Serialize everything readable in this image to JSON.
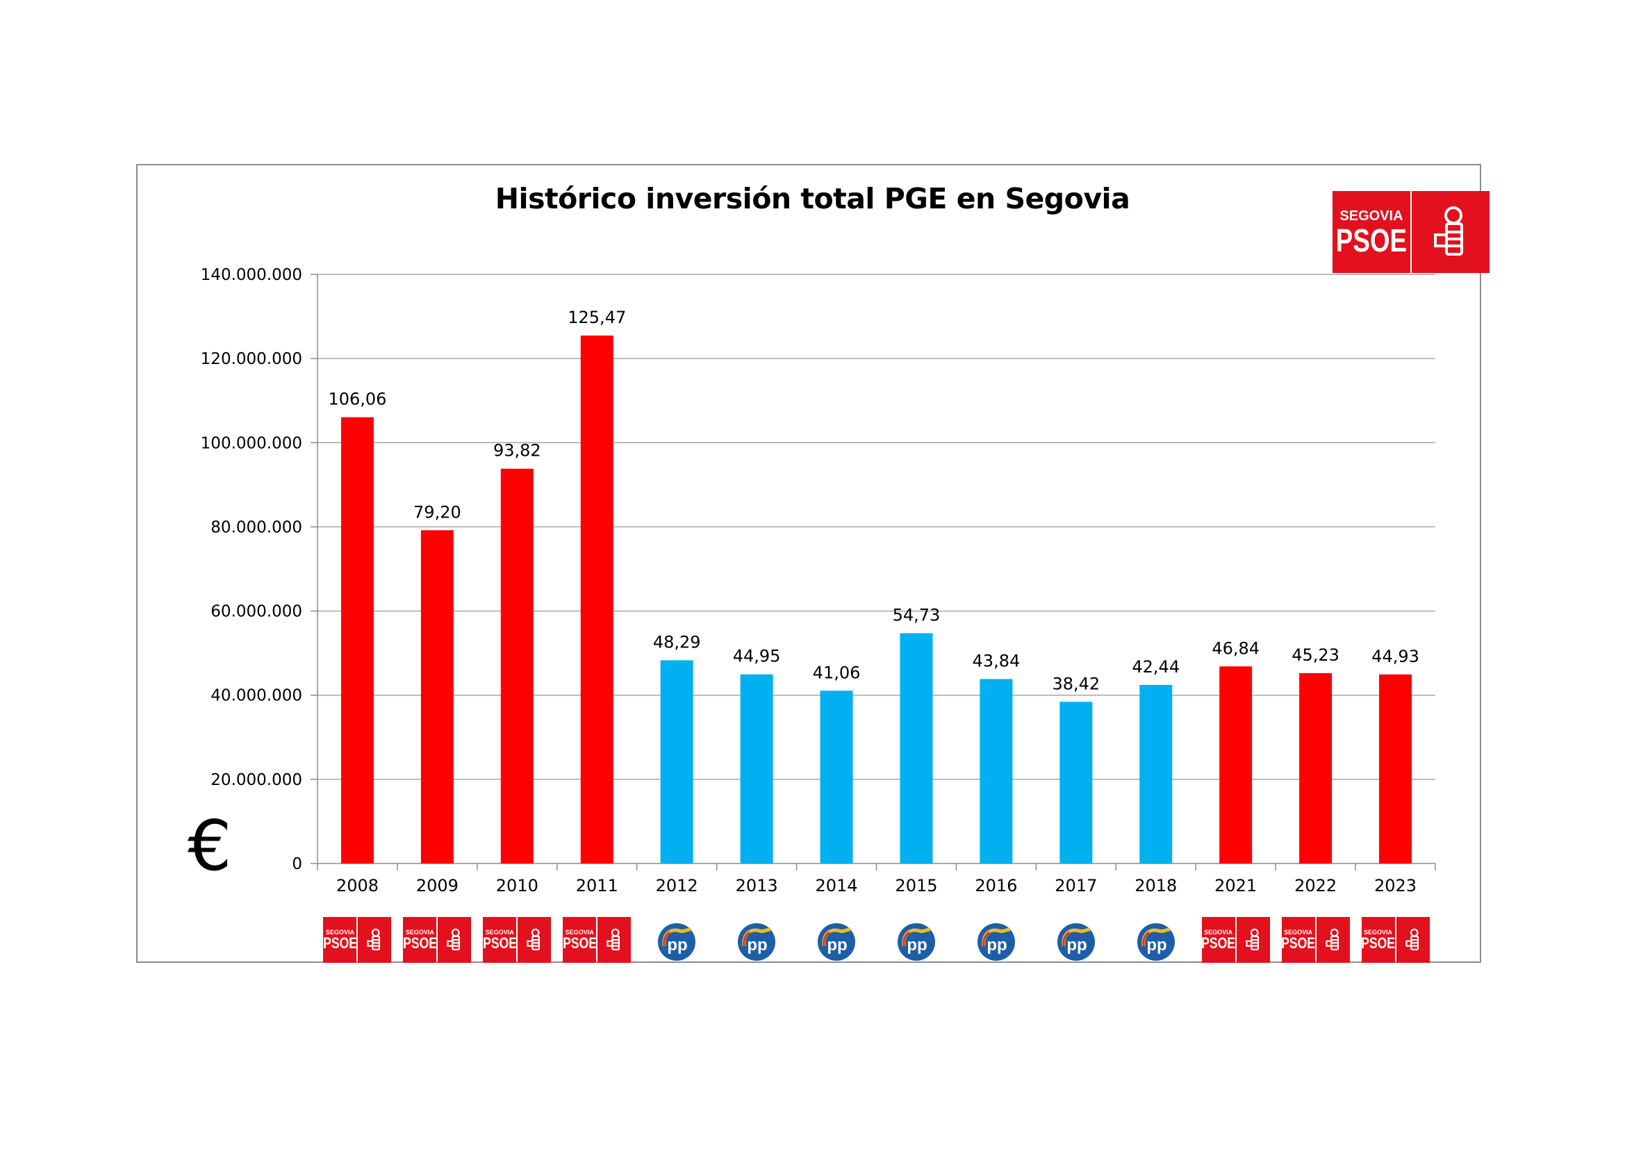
{
  "chart_data": {
    "type": "bar",
    "title": "Histórico inversión total PGE en Segovia",
    "xlabel": "",
    "ylabel": "€",
    "ylim": [
      0,
      140000000
    ],
    "yticks": [
      0,
      20000000,
      40000000,
      60000000,
      80000000,
      100000000,
      120000000,
      140000000
    ],
    "ytick_labels": [
      "0",
      "20.000.000",
      "40.000.000",
      "60.000.000",
      "80.000.000",
      "100.000.000",
      "120.000.000",
      "140.000.000"
    ],
    "grid": true,
    "categories": [
      "2008",
      "2009",
      "2010",
      "2011",
      "2012",
      "2013",
      "2014",
      "2015",
      "2016",
      "2017",
      "2018",
      "2021",
      "2022",
      "2023"
    ],
    "values": [
      106060000,
      79200000,
      93820000,
      125470000,
      48290000,
      44950000,
      41060000,
      54730000,
      43840000,
      38420000,
      42440000,
      46840000,
      45230000,
      44930000
    ],
    "data_labels": [
      "106,06",
      "79,20",
      "93,82",
      "125,47",
      "48,29",
      "44,95",
      "41,06",
      "54,73",
      "43,84",
      "38,42",
      "42,44",
      "46,84",
      "45,23",
      "44,93"
    ],
    "party": [
      "PSOE",
      "PSOE",
      "PSOE",
      "PSOE",
      "PP",
      "PP",
      "PP",
      "PP",
      "PP",
      "PP",
      "PP",
      "PSOE",
      "PSOE",
      "PSOE"
    ],
    "colors": {
      "PSOE": "#ff0000",
      "PP": "#00b0f0"
    }
  },
  "logos": {
    "psoe_top": "SEGOVIA",
    "psoe_main": "PSOE",
    "pp_text": "pp",
    "psoe_color": "#e3111d",
    "pp_color": "#1d5ea8"
  },
  "currency_symbol": "€"
}
